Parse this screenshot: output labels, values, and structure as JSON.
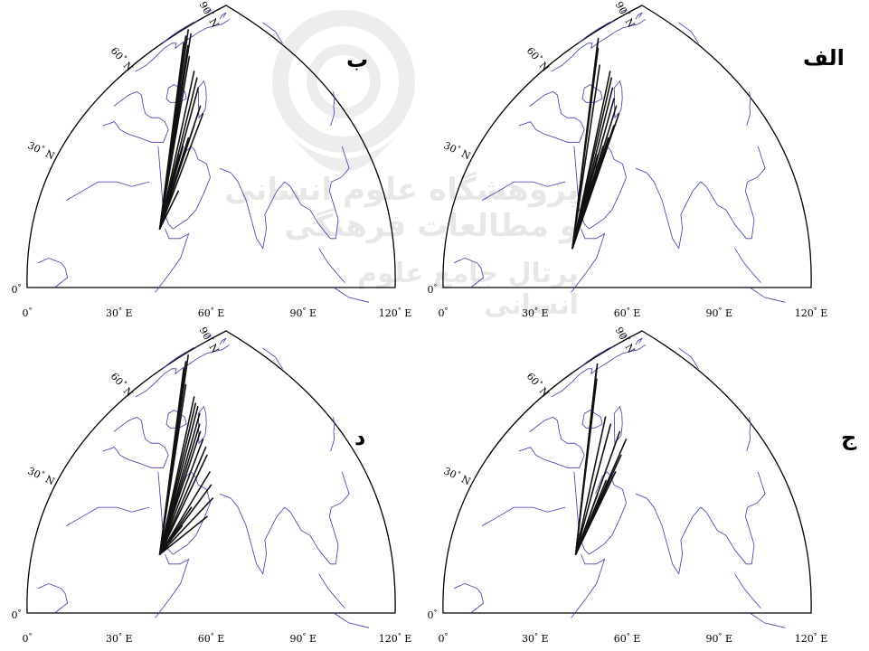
{
  "watermark": {
    "line1": "پژوهشگاه علوم انسانی و مطالعات فرهنگی",
    "line2": "پرتال جامع علوم انسانی"
  },
  "panels": [
    {
      "id": "b",
      "label": "ب",
      "paths": [
        [
          [
            21,
            66
          ],
          [
            40,
            12
          ]
        ],
        [
          [
            23,
            63
          ],
          [
            40,
            12
          ]
        ],
        [
          [
            25,
            60
          ],
          [
            40,
            12
          ]
        ],
        [
          [
            27,
            64
          ],
          [
            40,
            12
          ]
        ],
        [
          [
            30,
            59
          ],
          [
            40,
            12
          ]
        ],
        [
          [
            35,
            55
          ],
          [
            40,
            12
          ]
        ],
        [
          [
            42,
            50
          ],
          [
            40,
            12
          ]
        ],
        [
          [
            45,
            48
          ],
          [
            40,
            12
          ]
        ],
        [
          [
            47,
            45
          ],
          [
            40,
            12
          ]
        ],
        [
          [
            50,
            40
          ],
          [
            40,
            12
          ]
        ],
        [
          [
            52,
            38
          ],
          [
            40,
            12
          ]
        ],
        [
          [
            48,
            35
          ],
          [
            40,
            12
          ]
        ],
        [
          [
            46,
            32
          ],
          [
            40,
            12
          ]
        ],
        [
          [
            44,
            30
          ],
          [
            40,
            12
          ]
        ],
        [
          [
            43,
            28
          ],
          [
            40,
            12
          ]
        ],
        [
          [
            45,
            20
          ],
          [
            40,
            12
          ]
        ]
      ]
    },
    {
      "id": "alef",
      "label": "الف",
      "paths": [
        [
          [
            21,
            62
          ],
          [
            40,
            8
          ]
        ],
        [
          [
            23,
            60
          ],
          [
            40,
            8
          ]
        ],
        [
          [
            26,
            58
          ],
          [
            40,
            8
          ]
        ],
        [
          [
            33,
            52
          ],
          [
            40,
            8
          ]
        ],
        [
          [
            42,
            50
          ],
          [
            40,
            8
          ]
        ],
        [
          [
            44,
            48
          ],
          [
            40,
            8
          ]
        ],
        [
          [
            46,
            45
          ],
          [
            40,
            8
          ]
        ],
        [
          [
            48,
            42
          ],
          [
            40,
            8
          ]
        ],
        [
          [
            50,
            40
          ],
          [
            40,
            8
          ]
        ],
        [
          [
            52,
            38
          ],
          [
            40,
            8
          ]
        ],
        [
          [
            50,
            35
          ],
          [
            40,
            8
          ]
        ],
        [
          [
            48,
            32
          ],
          [
            40,
            8
          ]
        ],
        [
          [
            46,
            30
          ],
          [
            40,
            8
          ]
        ],
        [
          [
            44,
            28
          ],
          [
            40,
            8
          ]
        ],
        [
          [
            43,
            22
          ],
          [
            40,
            8
          ]
        ]
      ]
    },
    {
      "id": "dal",
      "label": "د",
      "paths": [
        [
          [
            21,
            66
          ],
          [
            40,
            12
          ]
        ],
        [
          [
            23,
            63
          ],
          [
            40,
            12
          ]
        ],
        [
          [
            25,
            60
          ],
          [
            40,
            12
          ]
        ],
        [
          [
            28,
            58
          ],
          [
            40,
            12
          ]
        ],
        [
          [
            33,
            54
          ],
          [
            40,
            12
          ]
        ],
        [
          [
            42,
            50
          ],
          [
            40,
            12
          ]
        ],
        [
          [
            44,
            48
          ],
          [
            40,
            12
          ]
        ],
        [
          [
            46,
            47
          ],
          [
            40,
            12
          ]
        ],
        [
          [
            48,
            45
          ],
          [
            40,
            12
          ]
        ],
        [
          [
            49,
            42
          ],
          [
            40,
            12
          ]
        ],
        [
          [
            50,
            40
          ],
          [
            40,
            12
          ]
        ],
        [
          [
            52,
            38
          ],
          [
            40,
            12
          ]
        ],
        [
          [
            54,
            36
          ],
          [
            40,
            12
          ]
        ],
        [
          [
            55,
            34
          ],
          [
            40,
            12
          ]
        ],
        [
          [
            57,
            30
          ],
          [
            40,
            12
          ]
        ],
        [
          [
            58,
            27
          ],
          [
            40,
            12
          ]
        ],
        [
          [
            59,
            24
          ],
          [
            40,
            12
          ]
        ],
        [
          [
            57,
            20
          ],
          [
            40,
            12
          ]
        ],
        [
          [
            50,
            22
          ],
          [
            40,
            12
          ]
        ],
        [
          [
            47,
            18
          ],
          [
            40,
            12
          ]
        ]
      ]
    },
    {
      "id": "jim",
      "label": "ج",
      "paths": [
        [
          [
            20,
            62
          ],
          [
            40,
            12
          ]
        ],
        [
          [
            22,
            60
          ],
          [
            40,
            12
          ]
        ],
        [
          [
            24,
            58
          ],
          [
            40,
            12
          ]
        ],
        [
          [
            27,
            56
          ],
          [
            40,
            12
          ]
        ],
        [
          [
            42,
            44
          ],
          [
            40,
            12
          ]
        ],
        [
          [
            46,
            42
          ],
          [
            40,
            12
          ]
        ],
        [
          [
            52,
            40
          ],
          [
            40,
            12
          ]
        ],
        [
          [
            56,
            38
          ],
          [
            40,
            12
          ]
        ],
        [
          [
            54,
            34
          ],
          [
            40,
            12
          ]
        ],
        [
          [
            52,
            30
          ],
          [
            40,
            12
          ]
        ],
        [
          [
            48,
            28
          ],
          [
            40,
            12
          ]
        ],
        [
          [
            45,
            25
          ],
          [
            40,
            12
          ]
        ]
      ]
    }
  ],
  "axes": {
    "lon_ticks": [
      {
        "text": "0",
        "lon": 0
      },
      {
        "text": "30",
        "lon": 30
      },
      {
        "text": "60",
        "lon": 60
      },
      {
        "text": "90",
        "lon": 90
      },
      {
        "text": "120",
        "lon": 120
      }
    ],
    "lon_suffix": "E",
    "lat_ticks": [
      {
        "text": "0",
        "lat": 0
      },
      {
        "text": "30",
        "lat": 30
      },
      {
        "text": "60",
        "lat": 60
      },
      {
        "text": "90",
        "lat": 90
      }
    ],
    "lat_suffix": "N"
  },
  "colors": {
    "coast": "#3a3ab8",
    "path": "#111111",
    "frame": "#000000"
  }
}
